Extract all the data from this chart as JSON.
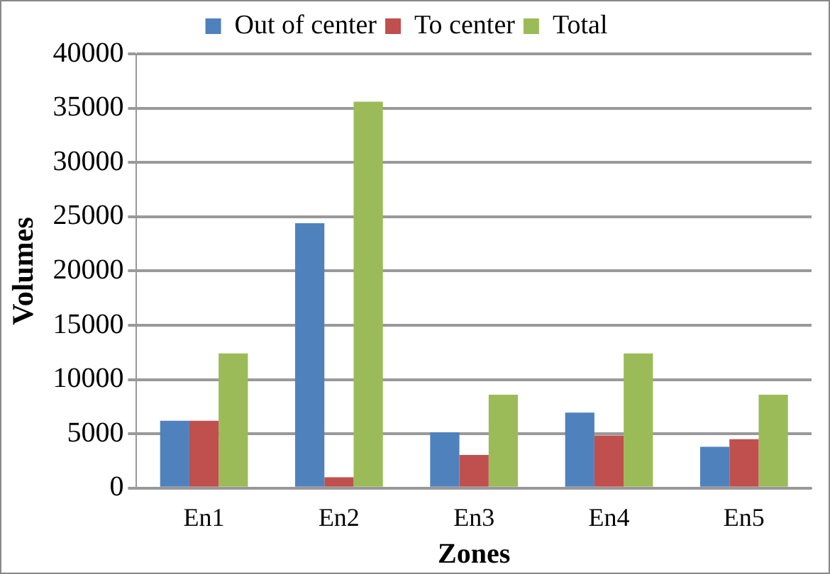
{
  "chart_data": {
    "type": "bar",
    "xlabel": "Zones",
    "ylabel": "Volumes",
    "categories": [
      "En1",
      "En2",
      "En3",
      "En4",
      "En5"
    ],
    "series": [
      {
        "name": "Out of center",
        "color": "#4f81bd",
        "values": [
          6200,
          24400,
          5150,
          6950,
          3800
        ]
      },
      {
        "name": "To center",
        "color": "#c0504d",
        "values": [
          6200,
          1000,
          3050,
          4850,
          4500
        ]
      },
      {
        "name": "Total",
        "color": "#9bbb59",
        "values": [
          12400,
          35600,
          8600,
          12400,
          8600
        ]
      }
    ],
    "ylim": [
      0,
      40000
    ],
    "yticks": [
      0,
      5000,
      10000,
      15000,
      20000,
      25000,
      30000,
      35000,
      40000
    ],
    "grid": "y",
    "legend": "top"
  }
}
